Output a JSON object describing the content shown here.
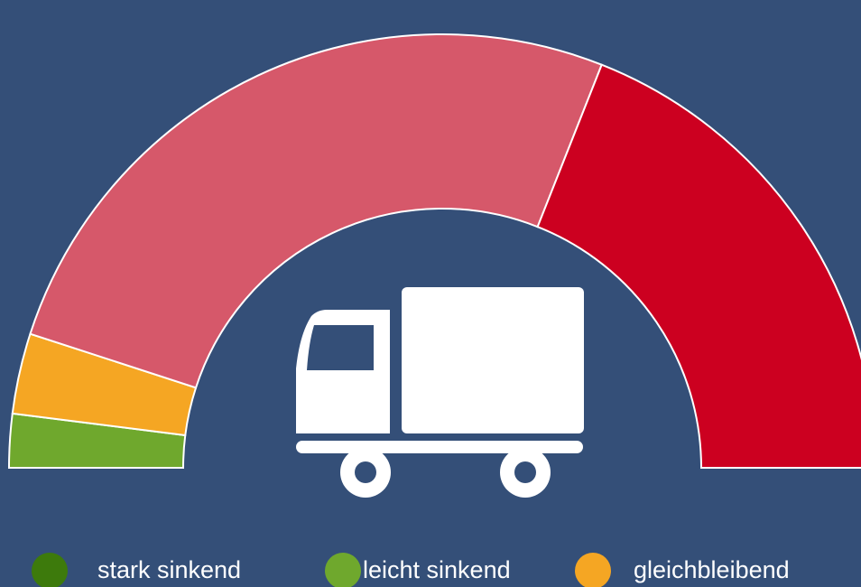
{
  "chart_data": {
    "type": "semi-donut",
    "categories": [
      "stark sinkend",
      "leicht sinkend",
      "gleichbleibend",
      null,
      null
    ],
    "values": [
      0,
      4,
      6,
      52,
      38
    ],
    "colors": [
      "#3d7a0c",
      "#6fa82d",
      "#f5a623",
      "#d6586a",
      "#cc0020"
    ]
  }
}
